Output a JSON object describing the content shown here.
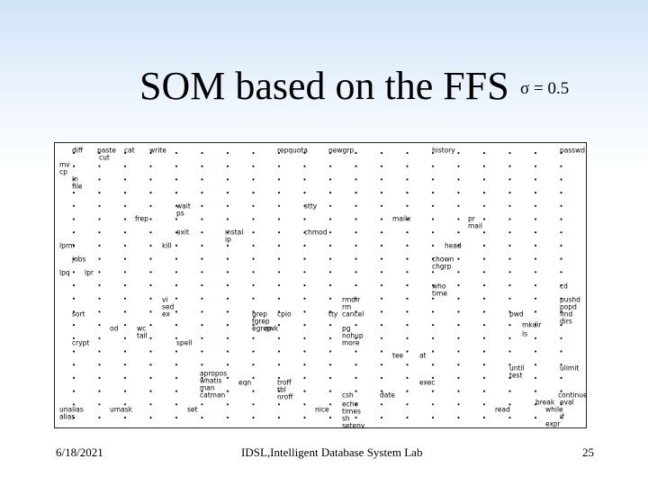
{
  "header": {
    "title": "SOM based on the FFS",
    "subtitle": "σ = 0.5"
  },
  "map": {
    "labels": [
      "diff",
      "paste",
      "cut",
      "cat",
      "write",
      "repquota",
      "newgrp",
      "history",
      "passwd",
      "mv",
      "cp",
      "ln",
      "file",
      "wait",
      "ps",
      "stty",
      "frep",
      "mailx",
      "pr",
      "mail",
      "exit",
      "instal",
      "ip",
      "chmod",
      "lprm",
      "kill",
      "head",
      "jobs",
      "chown",
      "chgrp",
      "lpq",
      "lpr",
      "cd",
      "who",
      "time",
      "vi",
      "sed",
      "ex",
      "rmdir",
      "rm",
      "cancel",
      "pushd",
      "popd",
      "sort",
      "grep",
      "fgrep",
      "egrep",
      "cpio",
      "tty",
      "pwd",
      "find",
      "dirs",
      "od",
      "wc",
      "tail",
      "awk",
      "pg",
      "nohup",
      "more",
      "mkdir",
      "ls",
      "crypt",
      "spell",
      "tee",
      "at",
      "until",
      "test",
      "ulimit",
      "apropos",
      "whatis",
      "man",
      "catman",
      "eqn",
      "troff",
      "tbl",
      "nroff",
      "exec",
      "csh",
      "date",
      "continue",
      "break",
      "eval",
      "unalias",
      "alias",
      "umask",
      "set",
      "nice",
      "echo",
      "times",
      "sh",
      "setenv",
      "read",
      "while",
      "if",
      "expr"
    ]
  },
  "footer": {
    "date": "6/18/2021",
    "center": "IDSL,Intelligent Database System Lab",
    "page": "25"
  }
}
